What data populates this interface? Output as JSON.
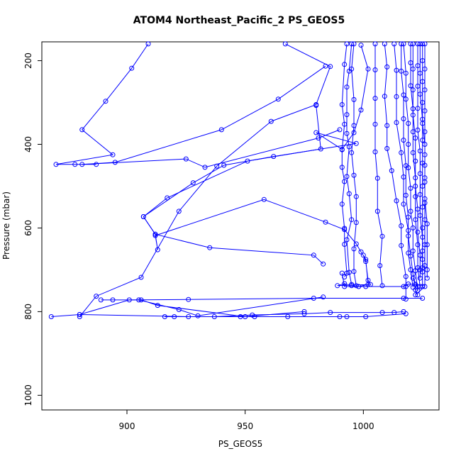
{
  "chart_data": {
    "type": "line",
    "title": "ATOM4 Northeast_Pacific_2 PS_GEOS5",
    "xlabel": "PS_GEOS5",
    "ylabel": "Pressure (mbar)",
    "xlim": [
      864,
      1032
    ],
    "ylim": [
      1035,
      155
    ],
    "y_reversed": true,
    "x_ticks": [
      900,
      950,
      1000
    ],
    "y_ticks": [
      200,
      400,
      600,
      800,
      1000
    ],
    "grid": false,
    "legend": "none",
    "series_color": "#0000ff",
    "marker": "open-circle",
    "series": [
      {
        "points": [
          [
            909,
            160
          ],
          [
            902,
            218
          ],
          [
            891,
            297
          ],
          [
            881,
            365
          ],
          [
            894,
            425
          ],
          [
            870,
            448
          ],
          [
            878,
            448
          ],
          [
            887,
            448
          ]
        ]
      },
      {
        "points": [
          [
            984,
            213
          ],
          [
            964,
            292
          ],
          [
            940,
            365
          ],
          [
            895,
            443
          ],
          [
            881,
            448
          ],
          [
            925,
            435
          ],
          [
            933,
            455
          ],
          [
            981,
            385
          ],
          [
            990,
            365
          ]
        ]
      },
      {
        "points": [
          [
            967,
            160
          ],
          [
            986,
            214
          ],
          [
            980,
            305
          ],
          [
            961,
            345
          ],
          [
            938,
            452
          ],
          [
            922,
            560
          ],
          [
            906,
            718
          ],
          [
            887,
            763
          ],
          [
            880,
            812
          ]
        ]
      },
      {
        "points": [
          [
            980,
            307
          ],
          [
            982,
            411
          ],
          [
            951,
            440
          ],
          [
            917,
            528
          ],
          [
            907,
            573
          ],
          [
            912,
            615
          ],
          [
            935,
            647
          ],
          [
            979,
            665
          ],
          [
            983,
            686
          ]
        ]
      },
      {
        "points": [
          [
            999,
            163
          ],
          [
            1002,
            220
          ],
          [
            999,
            318
          ],
          [
            996,
            372
          ],
          [
            991,
            412
          ],
          [
            980,
            372
          ],
          [
            997,
            398
          ],
          [
            962,
            429
          ],
          [
            941,
            450
          ],
          [
            928,
            492
          ],
          [
            907,
            573
          ],
          [
            912,
            615
          ],
          [
            913,
            652
          ],
          [
            912,
            618
          ],
          [
            958,
            532
          ],
          [
            984,
            586
          ],
          [
            992,
            604
          ],
          [
            997,
            638
          ],
          [
            999,
            657
          ],
          [
            1001,
            675
          ],
          [
            1002,
            735
          ],
          [
            998,
            740
          ],
          [
            995,
            738
          ],
          [
            992,
            733
          ],
          [
            989,
            738
          ],
          [
            1003,
            735
          ],
          [
            1002,
            725
          ],
          [
            1001,
            680
          ],
          [
            1000,
            665
          ]
        ]
      },
      {
        "points": [
          [
            916,
            812
          ],
          [
            920,
            812
          ],
          [
            948,
            812
          ],
          [
            954,
            812
          ],
          [
            968,
            812
          ],
          [
            990,
            812
          ],
          [
            993,
            812
          ],
          [
            1001,
            812
          ],
          [
            1018,
            805
          ]
        ]
      },
      {
        "points": [
          [
            868,
            812
          ],
          [
            880,
            807
          ],
          [
            926,
            812
          ],
          [
            937,
            812
          ],
          [
            953,
            808
          ],
          [
            975,
            805
          ],
          [
            986,
            802
          ],
          [
            1008,
            802
          ],
          [
            1013,
            802
          ],
          [
            1017,
            800
          ]
        ]
      },
      {
        "points": [
          [
            880,
            807
          ],
          [
            901,
            772
          ],
          [
            926,
            771
          ],
          [
            979,
            768
          ],
          [
            1017,
            768
          ],
          [
            1025,
            768
          ]
        ]
      },
      {
        "points": [
          [
            983,
            765
          ],
          [
            930,
            810
          ],
          [
            922,
            795
          ],
          [
            905,
            772
          ],
          [
            889,
            772
          ],
          [
            894,
            772
          ],
          [
            906,
            772
          ],
          [
            913,
            785
          ],
          [
            950,
            812
          ],
          [
            975,
            800
          ]
        ]
      },
      {
        "points": [
          [
            991,
            708
          ],
          [
            992,
            740
          ],
          [
            1001,
            740
          ],
          [
            1017,
            740
          ],
          [
            1019,
            734
          ],
          [
            1022,
            735
          ],
          [
            1023,
            740
          ],
          [
            1021,
            720
          ]
        ]
      },
      {
        "points": [
          [
            993,
            160
          ],
          [
            992,
            209
          ],
          [
            991,
            305
          ],
          [
            992,
            352
          ],
          [
            991,
            413
          ],
          [
            991,
            455
          ],
          [
            992,
            489
          ],
          [
            991,
            543
          ],
          [
            992,
            601
          ],
          [
            992,
            639
          ],
          [
            993,
            708
          ],
          [
            992,
            717
          ]
        ]
      },
      {
        "points": [
          [
            995,
            160
          ],
          [
            994,
            225
          ],
          [
            993,
            263
          ],
          [
            993,
            329
          ],
          [
            993,
            374
          ],
          [
            994,
            406
          ],
          [
            993,
            477
          ],
          [
            994,
            518
          ],
          [
            995,
            580
          ],
          [
            993,
            628
          ],
          [
            994,
            706
          ],
          [
            995,
            735
          ]
        ]
      },
      {
        "points": [
          [
            996,
            160
          ],
          [
            995,
            220
          ],
          [
            996,
            293
          ],
          [
            996,
            355
          ],
          [
            995,
            420
          ],
          [
            996,
            474
          ],
          [
            997,
            525
          ],
          [
            997,
            587
          ],
          [
            996,
            650
          ],
          [
            996,
            704
          ],
          [
            997,
            738
          ]
        ]
      },
      {
        "points": [
          [
            1005,
            160
          ],
          [
            1005,
            222
          ],
          [
            1005,
            290
          ],
          [
            1005,
            352
          ],
          [
            1005,
            418
          ],
          [
            1006,
            481
          ],
          [
            1006,
            560
          ],
          [
            1008,
            620
          ],
          [
            1007,
            690
          ],
          [
            1008,
            738
          ]
        ]
      },
      {
        "points": [
          [
            1009,
            160
          ],
          [
            1010,
            215
          ],
          [
            1009,
            285
          ],
          [
            1010,
            355
          ],
          [
            1010,
            410
          ],
          [
            1012,
            463
          ],
          [
            1014,
            535
          ],
          [
            1016,
            595
          ],
          [
            1016,
            642
          ],
          [
            1018,
            716
          ],
          [
            1018,
            740
          ],
          [
            1018,
            770
          ]
        ]
      },
      {
        "points": [
          [
            1013,
            160
          ],
          [
            1014,
            223
          ],
          [
            1014,
            286
          ],
          [
            1014,
            348
          ],
          [
            1016,
            420
          ],
          [
            1017,
            478
          ],
          [
            1017,
            543
          ],
          [
            1019,
            606
          ],
          [
            1019,
            660
          ],
          [
            1020,
            700
          ],
          [
            1021,
            742
          ]
        ]
      },
      {
        "points": [
          [
            1016,
            160
          ],
          [
            1016,
            225
          ],
          [
            1017,
            282
          ],
          [
            1017,
            339
          ],
          [
            1017,
            390
          ],
          [
            1018,
            451
          ],
          [
            1018,
            522
          ],
          [
            1019,
            574
          ],
          [
            1019,
            619
          ],
          [
            1020,
            667
          ],
          [
            1021,
            710
          ],
          [
            1022,
            748
          ],
          [
            1023,
            760
          ]
        ]
      },
      {
        "points": [
          [
            1017,
            160
          ],
          [
            1018,
            230
          ],
          [
            1018,
            292
          ],
          [
            1019,
            350
          ],
          [
            1019,
            400
          ],
          [
            1019,
            456
          ],
          [
            1020,
            505
          ],
          [
            1020,
            560
          ],
          [
            1021,
            600
          ],
          [
            1021,
            655
          ],
          [
            1022,
            702
          ],
          [
            1023,
            750
          ]
        ]
      },
      {
        "points": [
          [
            1020,
            160
          ],
          [
            1020,
            205
          ],
          [
            1020,
            260
          ],
          [
            1021,
            315
          ],
          [
            1021,
            370
          ],
          [
            1021,
            420
          ],
          [
            1022,
            480
          ],
          [
            1022,
            525
          ],
          [
            1022,
            580
          ],
          [
            1023,
            640
          ],
          [
            1023,
            695
          ],
          [
            1024,
            740
          ]
        ]
      },
      {
        "points": [
          [
            1021,
            160
          ],
          [
            1021,
            220
          ],
          [
            1021,
            270
          ],
          [
            1021,
            330
          ],
          [
            1022,
            385
          ],
          [
            1022,
            440
          ],
          [
            1022,
            500
          ],
          [
            1023,
            555
          ],
          [
            1023,
            610
          ],
          [
            1024,
            665
          ],
          [
            1024,
            700
          ],
          [
            1024,
            720
          ]
        ]
      },
      {
        "points": [
          [
            1023,
            160
          ],
          [
            1023,
            212
          ],
          [
            1023,
            261
          ],
          [
            1023,
            314
          ],
          [
            1023,
            366
          ],
          [
            1024,
            416
          ],
          [
            1024,
            470
          ],
          [
            1024,
            520
          ],
          [
            1024,
            570
          ],
          [
            1025,
            622
          ],
          [
            1025,
            675
          ],
          [
            1025,
            705
          ]
        ]
      },
      {
        "points": [
          [
            1024,
            160
          ],
          [
            1024,
            230
          ],
          [
            1024,
            280
          ],
          [
            1025,
            340
          ],
          [
            1025,
            390
          ],
          [
            1025,
            445
          ],
          [
            1025,
            500
          ],
          [
            1025,
            550
          ],
          [
            1025,
            600
          ],
          [
            1025,
            655
          ],
          [
            1025,
            695
          ],
          [
            1025,
            740
          ]
        ]
      },
      {
        "points": [
          [
            1025,
            160
          ],
          [
            1025,
            200
          ],
          [
            1025,
            250
          ],
          [
            1025,
            300
          ],
          [
            1025,
            350
          ],
          [
            1026,
            400
          ],
          [
            1026,
            450
          ],
          [
            1026,
            490
          ],
          [
            1026,
            540
          ],
          [
            1026,
            580
          ],
          [
            1026,
            640
          ],
          [
            1026,
            690
          ],
          [
            1026,
            740
          ],
          [
            1022,
            760
          ]
        ]
      },
      {
        "points": [
          [
            1026,
            160
          ],
          [
            1026,
            220
          ],
          [
            1026,
            270
          ],
          [
            1026,
            320
          ],
          [
            1026,
            370
          ],
          [
            1026,
            425
          ],
          [
            1026,
            480
          ],
          [
            1026,
            530
          ],
          [
            1027,
            590
          ],
          [
            1027,
            640
          ],
          [
            1027,
            700
          ],
          [
            1027,
            720
          ]
        ]
      }
    ]
  }
}
